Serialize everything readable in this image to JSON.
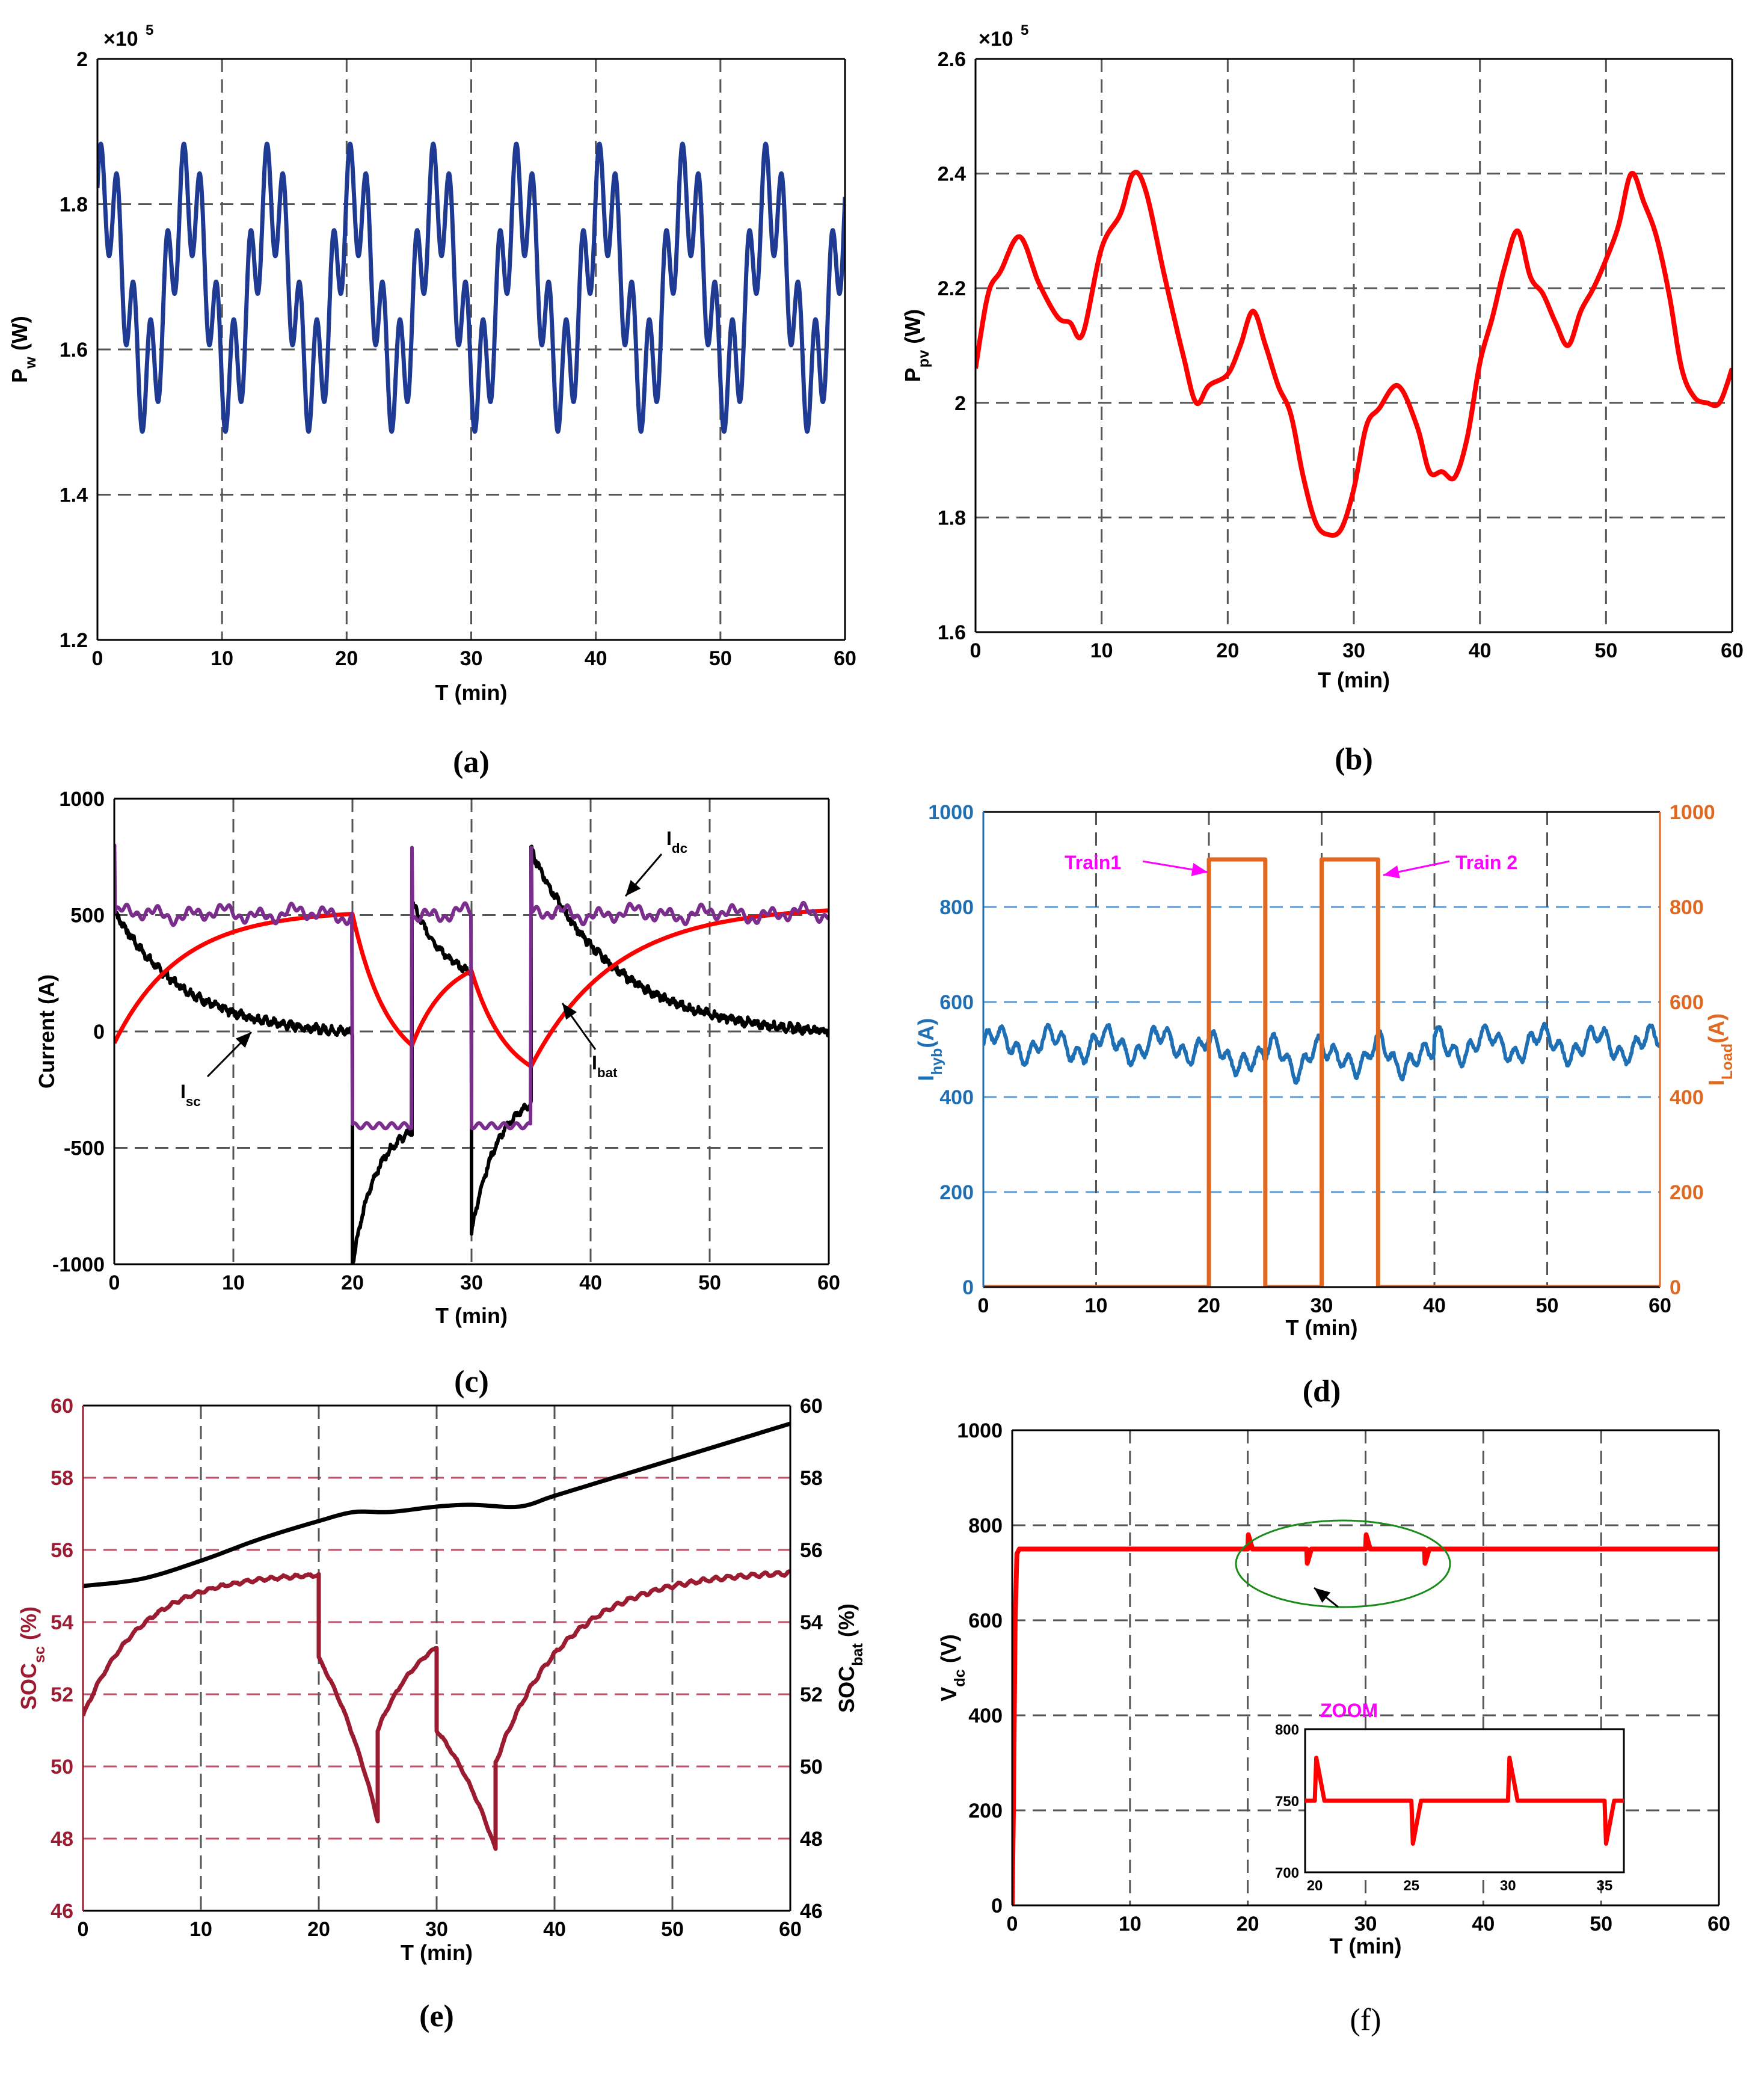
{
  "chart_data": [
    {
      "id": "a",
      "type": "line",
      "caption": "(a)",
      "xlabel": "T (min)",
      "ylabel": "P_w (W)",
      "exponent": "×10^5",
      "xlim": [
        0,
        60
      ],
      "ylim": [
        1.2,
        2.0
      ],
      "xticks": [
        "0",
        "10",
        "20",
        "30",
        "40",
        "50",
        "60"
      ],
      "yticks": [
        "1.2",
        "1.4",
        "1.6",
        "1.8",
        "2"
      ],
      "series": [
        {
          "name": "P_w",
          "color": "#1f3a93",
          "description": "Oscillating wind power, period about 6.7 min, range 1.48 to 1.89 (x10^5 W)",
          "period": 6.67,
          "min": 1.48,
          "max": 1.89,
          "mean": 1.685
        }
      ]
    },
    {
      "id": "b",
      "type": "line",
      "caption": "(b)",
      "xlabel": "T (min)",
      "ylabel": "P_pv (W)",
      "exponent": "×10^5",
      "xlim": [
        0,
        60
      ],
      "ylim": [
        1.6,
        2.6
      ],
      "xticks": [
        "0",
        "10",
        "20",
        "30",
        "40",
        "50",
        "60"
      ],
      "yticks": [
        "1.6",
        "1.8",
        "2",
        "2.2",
        "2.4",
        "2.6"
      ],
      "series": [
        {
          "name": "P_pv",
          "color": "#ff0000",
          "x": [
            0,
            1,
            2,
            3.5,
            5,
            6.5,
            7.5,
            8.5,
            10,
            11.5,
            12.5,
            13.5,
            15,
            16.5,
            17.5,
            18.5,
            20,
            21,
            22,
            23,
            24,
            25,
            26,
            27,
            28,
            29,
            30,
            31,
            32,
            33.5,
            35,
            36,
            37,
            38,
            39,
            40,
            41,
            42,
            43,
            44,
            45,
            46,
            47,
            48,
            49,
            50,
            51,
            52,
            53,
            54,
            55,
            56,
            57,
            58,
            59,
            60
          ],
          "y": [
            2.06,
            2.19,
            2.23,
            2.29,
            2.21,
            2.15,
            2.14,
            2.12,
            2.27,
            2.33,
            2.4,
            2.37,
            2.22,
            2.08,
            2.0,
            2.03,
            2.05,
            2.1,
            2.16,
            2.1,
            2.03,
            1.98,
            1.87,
            1.79,
            1.77,
            1.78,
            1.85,
            1.96,
            1.99,
            2.03,
            1.96,
            1.88,
            1.88,
            1.87,
            1.94,
            2.07,
            2.15,
            2.24,
            2.3,
            2.22,
            2.19,
            2.14,
            2.1,
            2.16,
            2.2,
            2.25,
            2.31,
            2.4,
            2.35,
            2.29,
            2.19,
            2.06,
            2.01,
            2.0,
            2.0,
            2.06
          ]
        }
      ]
    },
    {
      "id": "c",
      "type": "line",
      "caption": "(c)",
      "xlabel": "T (min)",
      "ylabel": "Current (A)",
      "xlim": [
        0,
        60
      ],
      "ylim": [
        -1000,
        1000
      ],
      "xticks": [
        "0",
        "10",
        "20",
        "30",
        "40",
        "50",
        "60"
      ],
      "yticks": [
        "-1000",
        "-500",
        "0",
        "500",
        "1000"
      ],
      "annotations": [
        {
          "text": "I",
          "sub": "dc"
        },
        {
          "text": "I",
          "sub": "sc"
        },
        {
          "text": "I",
          "sub": "bat"
        }
      ],
      "series": [
        {
          "name": "I_dc",
          "color": "#7b2d8e",
          "description": "about 500 A with small ripple; about -410 A during 20-25 and 30-35 min; spikes to ~800 A at 0, 25, 35"
        },
        {
          "name": "I_sc",
          "color": "#000000",
          "description": "decays from ~500 to ~0 A over 0-20; jumps to -1000 at 20 and rises to ~-400 by 25; ~560 at 25 decays to ~200 at 30; ~-860 at 30 rises to ~-260 at 35; ~780 at 35 decays to ~0 at 60"
        },
        {
          "name": "I_bat",
          "color": "#ff0000",
          "description": "rises from ~-50 to 500 A by 20; falls to ~-60 at 25; rises to ~260 at 30; falls to ~-150 at 35; recovers to ~520 by 60"
        }
      ]
    },
    {
      "id": "d",
      "type": "line",
      "caption": "(d)",
      "xlabel": "T (min)",
      "ylabel_left": "I_hyb(A)",
      "ylabel_right": "I_Load(A)",
      "xlim": [
        0,
        60
      ],
      "ylim": [
        0,
        1000
      ],
      "xticks": [
        "0",
        "10",
        "20",
        "30",
        "40",
        "50",
        "60"
      ],
      "yticks": [
        "0",
        "200",
        "400",
        "600",
        "800",
        "1000"
      ],
      "annotations": [
        {
          "text": "Train1"
        },
        {
          "text": "Train 2"
        }
      ],
      "series": [
        {
          "name": "I_hyb",
          "color": "#1f6fb5",
          "description": "about 510 A with ripple (450-560); slightly lower (~470-500) between 20 and 40 min"
        },
        {
          "name": "I_Load",
          "color": "#e06820",
          "x": [
            0,
            20,
            20,
            25,
            25,
            30,
            30,
            35,
            35,
            60
          ],
          "y": [
            0,
            0,
            900,
            900,
            0,
            0,
            900,
            900,
            0,
            0
          ]
        }
      ]
    },
    {
      "id": "e",
      "type": "line",
      "caption": "(e)",
      "xlabel": "T (min)",
      "ylabel_left": "SOC_sc (%)",
      "ylabel_right": "SOC_bat (%)",
      "xlim": [
        0,
        60
      ],
      "ylim": [
        46,
        60
      ],
      "xticks": [
        "0",
        "10",
        "20",
        "30",
        "40",
        "50",
        "60"
      ],
      "yticks": [
        "46",
        "48",
        "50",
        "52",
        "54",
        "56",
        "58",
        "60"
      ],
      "series": [
        {
          "name": "SOC_bat",
          "color": "#000000",
          "x": [
            0,
            5,
            10,
            15,
            20,
            23,
            26,
            30,
            33,
            37,
            40,
            45,
            50,
            55,
            60
          ],
          "y": [
            55.0,
            55.2,
            55.7,
            56.3,
            56.8,
            57.05,
            57.05,
            57.2,
            57.25,
            57.2,
            57.5,
            58.0,
            58.5,
            59.0,
            59.5
          ]
        },
        {
          "name": "SOC_sc",
          "color": "#9b1b30",
          "description": "rises 51.4 to 55.3 (0-20); drops to 53.0 at 20 then falls to 48.5 at 25; 51.0 at 25 rises to 53.3 at 30; 51.0 at 30 falls to 47.7 at 35; 50.1 at 35 rises to 55.4 by 55"
        }
      ]
    },
    {
      "id": "f",
      "type": "line",
      "caption": "(f)",
      "xlabel": "T (min)",
      "ylabel": "V_dc (V)",
      "xlim": [
        0,
        60
      ],
      "ylim": [
        0,
        1000
      ],
      "xticks": [
        "0",
        "10",
        "20",
        "30",
        "40",
        "50",
        "60"
      ],
      "yticks": [
        "0",
        "200",
        "400",
        "600",
        "800",
        "1000"
      ],
      "annotations": [
        {
          "text": "ZOOM"
        }
      ],
      "series": [
        {
          "name": "V_dc",
          "color": "#ff0000",
          "description": "rises from 0 to 750 V within ~0.5 min; stays at 750 V; spikes +30 V at 20 and 30 min, dips -30 V at 25 and 35 min"
        }
      ],
      "inset": {
        "xlim": [
          19.5,
          36
        ],
        "ylim": [
          700,
          800
        ],
        "xticks": [
          "20",
          "25",
          "30",
          "35"
        ],
        "yticks": [
          "700",
          "750",
          "800"
        ]
      }
    }
  ]
}
